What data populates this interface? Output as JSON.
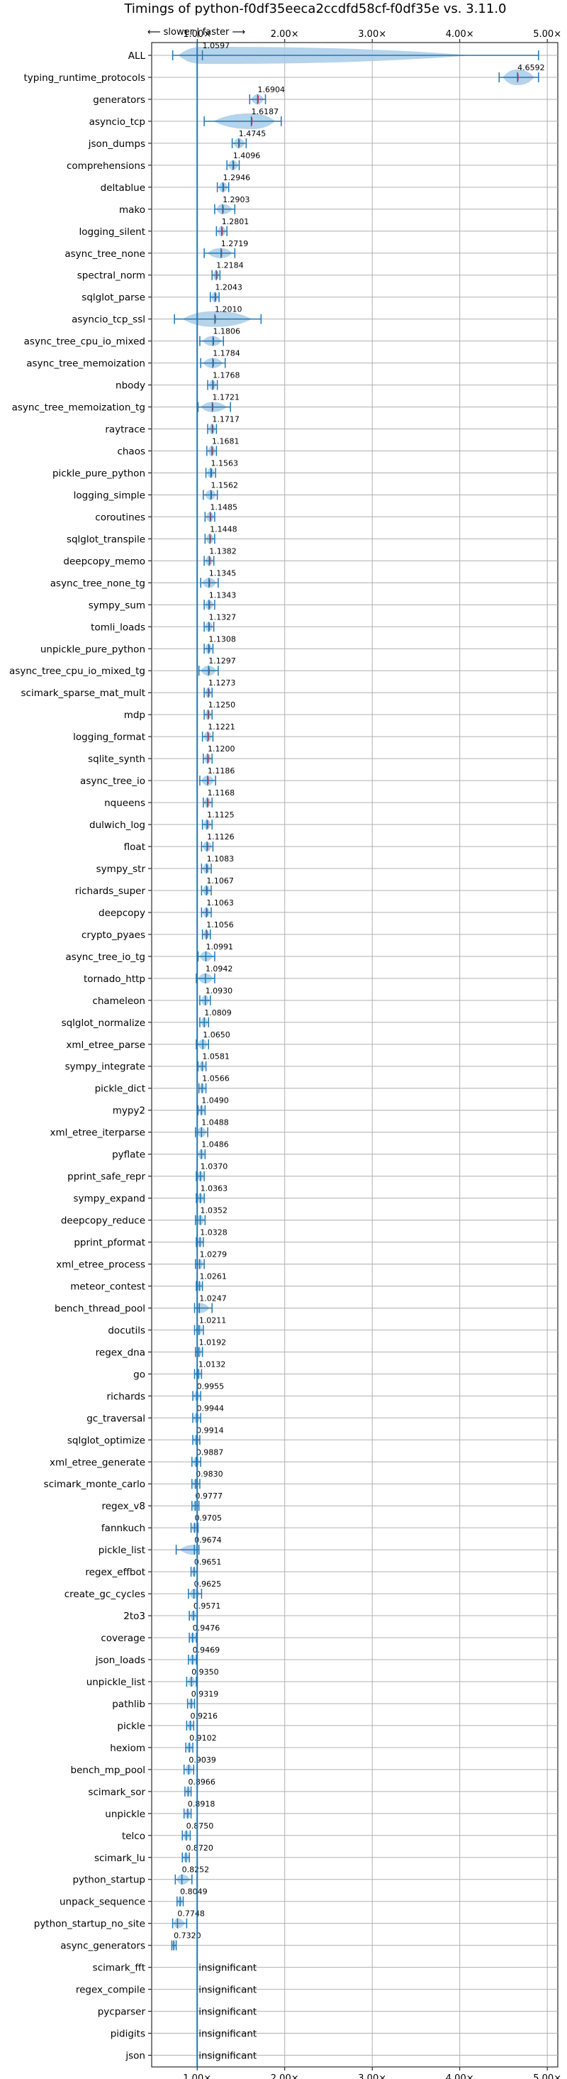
{
  "chart_data": {
    "type": "violin",
    "title": "Timings of python-f0df35eeca2ccdfd58cf-f0df35e vs. 3.11.0",
    "direction_hint": "⟵ slower | faster ⟶",
    "x_ticks": [
      1.0,
      2.0,
      3.0,
      4.0,
      5.0
    ],
    "x_tick_labels": [
      "1.00×",
      "2.00×",
      "3.00×",
      "4.00×",
      "5.00×"
    ],
    "xlim": [
      0.48,
      5.12
    ],
    "grid": true,
    "reference_line": 1.0,
    "colors": {
      "violin": "#a8cbe8",
      "line": "#1f77b4",
      "median": "#d62728"
    },
    "insignificant_label": "insignificant",
    "benchmarks": [
      {
        "name": "ALL",
        "value": 1.0597,
        "min": 0.72,
        "max": 4.9,
        "label": "1.0597"
      },
      {
        "name": "typing_runtime_protocols",
        "value": 4.6592,
        "min": 4.45,
        "max": 4.9,
        "label": "4.6592"
      },
      {
        "name": "generators",
        "value": 1.6904,
        "min": 1.6,
        "max": 1.78,
        "label": "1.6904"
      },
      {
        "name": "asyncio_tcp",
        "value": 1.6187,
        "min": 1.08,
        "max": 1.96,
        "label": "1.6187"
      },
      {
        "name": "json_dumps",
        "value": 1.4745,
        "min": 1.4,
        "max": 1.56,
        "label": "1.4745"
      },
      {
        "name": "comprehensions",
        "value": 1.4096,
        "min": 1.34,
        "max": 1.48,
        "label": "1.4096"
      },
      {
        "name": "deltablue",
        "value": 1.2946,
        "min": 1.23,
        "max": 1.36,
        "label": "1.2946"
      },
      {
        "name": "mako",
        "value": 1.2903,
        "min": 1.2,
        "max": 1.43,
        "label": "1.2903"
      },
      {
        "name": "logging_silent",
        "value": 1.2801,
        "min": 1.22,
        "max": 1.34,
        "label": "1.2801"
      },
      {
        "name": "async_tree_none",
        "value": 1.2719,
        "min": 1.08,
        "max": 1.43,
        "label": "1.2719"
      },
      {
        "name": "spectral_norm",
        "value": 1.2184,
        "min": 1.17,
        "max": 1.26,
        "label": "1.2184"
      },
      {
        "name": "sqlglot_parse",
        "value": 1.2043,
        "min": 1.15,
        "max": 1.25,
        "label": "1.2043"
      },
      {
        "name": "asyncio_tcp_ssl",
        "value": 1.201,
        "min": 0.74,
        "max": 1.73,
        "label": "1.2010"
      },
      {
        "name": "async_tree_cpu_io_mixed",
        "value": 1.1806,
        "min": 1.03,
        "max": 1.3,
        "label": "1.1806"
      },
      {
        "name": "async_tree_memoization",
        "value": 1.1784,
        "min": 1.04,
        "max": 1.32,
        "label": "1.1784"
      },
      {
        "name": "nbody",
        "value": 1.1768,
        "min": 1.12,
        "max": 1.23,
        "label": "1.1768"
      },
      {
        "name": "async_tree_memoization_tg",
        "value": 1.1721,
        "min": 1.01,
        "max": 1.38,
        "label": "1.1721"
      },
      {
        "name": "raytrace",
        "value": 1.1717,
        "min": 1.12,
        "max": 1.22,
        "label": "1.1717"
      },
      {
        "name": "chaos",
        "value": 1.1681,
        "min": 1.11,
        "max": 1.22,
        "label": "1.1681"
      },
      {
        "name": "pickle_pure_python",
        "value": 1.1563,
        "min": 1.1,
        "max": 1.21,
        "label": "1.1563"
      },
      {
        "name": "logging_simple",
        "value": 1.1562,
        "min": 1.07,
        "max": 1.23,
        "label": "1.1562"
      },
      {
        "name": "coroutines",
        "value": 1.1485,
        "min": 1.09,
        "max": 1.2,
        "label": "1.1485"
      },
      {
        "name": "sqlglot_transpile",
        "value": 1.1448,
        "min": 1.09,
        "max": 1.2,
        "label": "1.1448"
      },
      {
        "name": "deepcopy_memo",
        "value": 1.1382,
        "min": 1.08,
        "max": 1.19,
        "label": "1.1382"
      },
      {
        "name": "async_tree_none_tg",
        "value": 1.1345,
        "min": 1.04,
        "max": 1.24,
        "label": "1.1345"
      },
      {
        "name": "sympy_sum",
        "value": 1.1343,
        "min": 1.08,
        "max": 1.2,
        "label": "1.1343"
      },
      {
        "name": "tomli_loads",
        "value": 1.1327,
        "min": 1.08,
        "max": 1.19,
        "label": "1.1327"
      },
      {
        "name": "unpickle_pure_python",
        "value": 1.1308,
        "min": 1.08,
        "max": 1.18,
        "label": "1.1308"
      },
      {
        "name": "async_tree_cpu_io_mixed_tg",
        "value": 1.1297,
        "min": 1.02,
        "max": 1.24,
        "label": "1.1297"
      },
      {
        "name": "scimark_sparse_mat_mult",
        "value": 1.1273,
        "min": 1.08,
        "max": 1.17,
        "label": "1.1273"
      },
      {
        "name": "mdp",
        "value": 1.125,
        "min": 1.08,
        "max": 1.17,
        "label": "1.1250"
      },
      {
        "name": "logging_format",
        "value": 1.1221,
        "min": 1.06,
        "max": 1.18,
        "label": "1.1221"
      },
      {
        "name": "sqlite_synth",
        "value": 1.12,
        "min": 1.07,
        "max": 1.17,
        "label": "1.1200"
      },
      {
        "name": "async_tree_io",
        "value": 1.1186,
        "min": 1.03,
        "max": 1.21,
        "label": "1.1186"
      },
      {
        "name": "nqueens",
        "value": 1.1168,
        "min": 1.07,
        "max": 1.17,
        "label": "1.1168"
      },
      {
        "name": "dulwich_log",
        "value": 1.1125,
        "min": 1.06,
        "max": 1.17,
        "label": "1.1125"
      },
      {
        "name": "float",
        "value": 1.1126,
        "min": 1.05,
        "max": 1.18,
        "label": "1.1126"
      },
      {
        "name": "sympy_str",
        "value": 1.1083,
        "min": 1.05,
        "max": 1.16,
        "label": "1.1083"
      },
      {
        "name": "richards_super",
        "value": 1.1067,
        "min": 1.05,
        "max": 1.16,
        "label": "1.1067"
      },
      {
        "name": "deepcopy",
        "value": 1.1063,
        "min": 1.05,
        "max": 1.16,
        "label": "1.1063"
      },
      {
        "name": "crypto_pyaes",
        "value": 1.1056,
        "min": 1.06,
        "max": 1.15,
        "label": "1.1056"
      },
      {
        "name": "async_tree_io_tg",
        "value": 1.0991,
        "min": 1.01,
        "max": 1.2,
        "label": "1.0991"
      },
      {
        "name": "tornado_http",
        "value": 1.0942,
        "min": 0.99,
        "max": 1.2,
        "label": "1.0942"
      },
      {
        "name": "chameleon",
        "value": 1.093,
        "min": 1.03,
        "max": 1.15,
        "label": "1.0930"
      },
      {
        "name": "sqlglot_normalize",
        "value": 1.0809,
        "min": 1.03,
        "max": 1.13,
        "label": "1.0809"
      },
      {
        "name": "xml_etree_parse",
        "value": 1.065,
        "min": 0.99,
        "max": 1.13,
        "label": "1.0650"
      },
      {
        "name": "sympy_integrate",
        "value": 1.0581,
        "min": 1.01,
        "max": 1.1,
        "label": "1.0581"
      },
      {
        "name": "pickle_dict",
        "value": 1.0566,
        "min": 1.02,
        "max": 1.1,
        "label": "1.0566"
      },
      {
        "name": "mypy2",
        "value": 1.049,
        "min": 1.01,
        "max": 1.09,
        "label": "1.0490"
      },
      {
        "name": "xml_etree_iterparse",
        "value": 1.0488,
        "min": 0.98,
        "max": 1.12,
        "label": "1.0488"
      },
      {
        "name": "pyflate",
        "value": 1.0486,
        "min": 1.0,
        "max": 1.09,
        "label": "1.0486"
      },
      {
        "name": "pprint_safe_repr",
        "value": 1.037,
        "min": 0.99,
        "max": 1.08,
        "label": "1.0370"
      },
      {
        "name": "sympy_expand",
        "value": 1.0363,
        "min": 0.99,
        "max": 1.08,
        "label": "1.0363"
      },
      {
        "name": "deepcopy_reduce",
        "value": 1.0352,
        "min": 0.98,
        "max": 1.09,
        "label": "1.0352"
      },
      {
        "name": "pprint_pformat",
        "value": 1.0328,
        "min": 0.99,
        "max": 1.07,
        "label": "1.0328"
      },
      {
        "name": "xml_etree_process",
        "value": 1.0279,
        "min": 0.98,
        "max": 1.08,
        "label": "1.0279"
      },
      {
        "name": "meteor_contest",
        "value": 1.0261,
        "min": 0.99,
        "max": 1.06,
        "label": "1.0261"
      },
      {
        "name": "bench_thread_pool",
        "value": 1.0247,
        "min": 0.97,
        "max": 1.17,
        "label": "1.0247"
      },
      {
        "name": "docutils",
        "value": 1.0211,
        "min": 0.97,
        "max": 1.07,
        "label": "1.0211"
      },
      {
        "name": "regex_dna",
        "value": 1.0192,
        "min": 0.98,
        "max": 1.06,
        "label": "1.0192"
      },
      {
        "name": "go",
        "value": 1.0132,
        "min": 0.97,
        "max": 1.05,
        "label": "1.0132"
      },
      {
        "name": "richards",
        "value": 0.9955,
        "min": 0.95,
        "max": 1.04,
        "label": "0.9955"
      },
      {
        "name": "gc_traversal",
        "value": 0.9944,
        "min": 0.95,
        "max": 1.04,
        "label": "0.9944"
      },
      {
        "name": "sqlglot_optimize",
        "value": 0.9914,
        "min": 0.95,
        "max": 1.03,
        "label": "0.9914"
      },
      {
        "name": "xml_etree_generate",
        "value": 0.9887,
        "min": 0.94,
        "max": 1.04,
        "label": "0.9887"
      },
      {
        "name": "scimark_monte_carlo",
        "value": 0.983,
        "min": 0.94,
        "max": 1.03,
        "label": "0.9830"
      },
      {
        "name": "regex_v8",
        "value": 0.9777,
        "min": 0.94,
        "max": 1.02,
        "label": "0.9777"
      },
      {
        "name": "fannkuch",
        "value": 0.9705,
        "min": 0.93,
        "max": 1.01,
        "label": "0.9705"
      },
      {
        "name": "pickle_list",
        "value": 0.9674,
        "min": 0.76,
        "max": 1.02,
        "label": "0.9674"
      },
      {
        "name": "regex_effbot",
        "value": 0.9651,
        "min": 0.93,
        "max": 1.0,
        "label": "0.9651"
      },
      {
        "name": "create_gc_cycles",
        "value": 0.9625,
        "min": 0.9,
        "max": 1.05,
        "label": "0.9625"
      },
      {
        "name": "2to3",
        "value": 0.9571,
        "min": 0.91,
        "max": 1.0,
        "label": "0.9571"
      },
      {
        "name": "coverage",
        "value": 0.9476,
        "min": 0.91,
        "max": 0.99,
        "label": "0.9476"
      },
      {
        "name": "json_loads",
        "value": 0.9469,
        "min": 0.9,
        "max": 0.99,
        "label": "0.9469"
      },
      {
        "name": "unpickle_list",
        "value": 0.935,
        "min": 0.88,
        "max": 0.99,
        "label": "0.9350"
      },
      {
        "name": "pathlib",
        "value": 0.9319,
        "min": 0.89,
        "max": 0.97,
        "label": "0.9319"
      },
      {
        "name": "pickle",
        "value": 0.9216,
        "min": 0.88,
        "max": 0.96,
        "label": "0.9216"
      },
      {
        "name": "hexiom",
        "value": 0.9102,
        "min": 0.87,
        "max": 0.95,
        "label": "0.9102"
      },
      {
        "name": "bench_mp_pool",
        "value": 0.9039,
        "min": 0.85,
        "max": 0.96,
        "label": "0.9039"
      },
      {
        "name": "scimark_sor",
        "value": 0.8966,
        "min": 0.86,
        "max": 0.93,
        "label": "0.8966"
      },
      {
        "name": "unpickle",
        "value": 0.8918,
        "min": 0.85,
        "max": 0.93,
        "label": "0.8918"
      },
      {
        "name": "telco",
        "value": 0.875,
        "min": 0.83,
        "max": 0.92,
        "label": "0.8750"
      },
      {
        "name": "scimark_lu",
        "value": 0.872,
        "min": 0.83,
        "max": 0.91,
        "label": "0.8720"
      },
      {
        "name": "python_startup",
        "value": 0.8252,
        "min": 0.75,
        "max": 0.94,
        "label": "0.8252"
      },
      {
        "name": "unpack_sequence",
        "value": 0.8049,
        "min": 0.77,
        "max": 0.84,
        "label": "0.8049"
      },
      {
        "name": "python_startup_no_site",
        "value": 0.7748,
        "min": 0.72,
        "max": 0.88,
        "label": "0.7748"
      },
      {
        "name": "async_generators",
        "value": 0.732,
        "min": 0.71,
        "max": 0.76,
        "label": "0.7320"
      },
      {
        "name": "scimark_fft",
        "insignificant": true
      },
      {
        "name": "regex_compile",
        "insignificant": true
      },
      {
        "name": "pycparser",
        "insignificant": true
      },
      {
        "name": "pidigits",
        "insignificant": true
      },
      {
        "name": "json",
        "insignificant": true
      }
    ]
  }
}
